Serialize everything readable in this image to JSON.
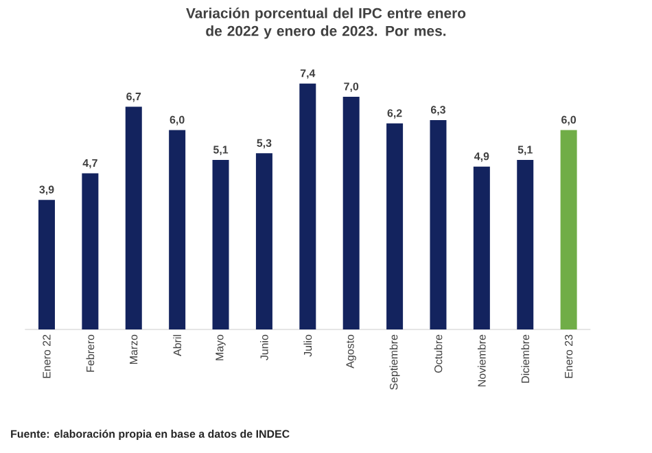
{
  "chart_data": {
    "type": "bar",
    "title": "Variación porcentual del IPC entre enero de 2022 y enero de 2023. Por mes.",
    "categories": [
      "Enero 22",
      "Febrero",
      "Marzo",
      "Abril",
      "Mayo",
      "Junio",
      "Julio",
      "Agosto",
      "Septiembre",
      "Octubre",
      "Noviembre",
      "Diciembre",
      "Enero 23"
    ],
    "values": [
      3.9,
      4.7,
      6.7,
      6.0,
      5.1,
      5.3,
      7.4,
      7.0,
      6.2,
      6.3,
      4.9,
      5.1,
      6.0
    ],
    "value_labels": [
      "3,9",
      "4,7",
      "6,7",
      "6,0",
      "5,1",
      "5,3",
      "7,4",
      "7,0",
      "6,2",
      "6,3",
      "4,9",
      "5,1",
      "6,0"
    ],
    "colors": [
      "#13235e",
      "#13235e",
      "#13235e",
      "#13235e",
      "#13235e",
      "#13235e",
      "#13235e",
      "#13235e",
      "#13235e",
      "#13235e",
      "#13235e",
      "#13235e",
      "#70ad47"
    ],
    "annotations": [
      "Fuente: elaboración propia en base a datos de INDEC"
    ]
  }
}
